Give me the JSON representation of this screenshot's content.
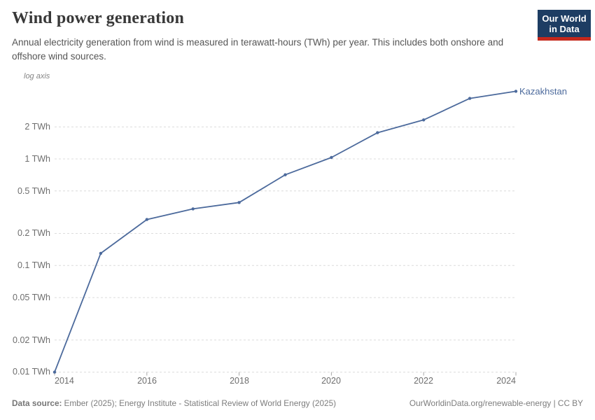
{
  "header": {
    "title": "Wind power generation",
    "subtitle": "Annual electricity generation from wind is measured in terawatt-hours (TWh) per year. This includes both onshore and offshore wind sources.",
    "logo": {
      "line1": "Our World",
      "line2": "in Data"
    }
  },
  "chart_data": {
    "type": "line",
    "title": "Wind power generation",
    "axis_note": "log axis",
    "y_scale": "log",
    "grid": true,
    "x": [
      2014,
      2015,
      2016,
      2017,
      2018,
      2019,
      2020,
      2021,
      2022,
      2023,
      2024
    ],
    "series": [
      {
        "name": "Kazakhstan",
        "color": "#4c6a9c",
        "values": [
          0.01,
          0.13,
          0.27,
          0.34,
          0.39,
          0.71,
          1.03,
          1.76,
          2.32,
          3.69,
          4.31
        ]
      }
    ],
    "xlim": [
      2014,
      2024
    ],
    "ylim": [
      0.01,
      5
    ],
    "ylabel": "TWh",
    "y_ticks": [
      {
        "value": 2,
        "label": "2 TWh"
      },
      {
        "value": 1,
        "label": "1 TWh"
      },
      {
        "value": 0.5,
        "label": "0.5 TWh"
      },
      {
        "value": 0.2,
        "label": "0.2 TWh"
      },
      {
        "value": 0.1,
        "label": "0.1 TWh"
      },
      {
        "value": 0.05,
        "label": "0.05 TWh"
      },
      {
        "value": 0.02,
        "label": "0.02 TWh"
      },
      {
        "value": 0.01,
        "label": "0.01 TWh"
      }
    ],
    "x_ticks": [
      {
        "value": 2014,
        "label": "2014"
      },
      {
        "value": 2016,
        "label": "2016"
      },
      {
        "value": 2018,
        "label": "2018"
      },
      {
        "value": 2020,
        "label": "2020"
      },
      {
        "value": 2022,
        "label": "2022"
      },
      {
        "value": 2024,
        "label": "2024"
      }
    ],
    "legend_position": "end-of-line-label"
  },
  "footer": {
    "datasource_label": "Data source:",
    "datasource_text": "Ember (2025); Energy Institute - Statistical Review of World Energy (2025)",
    "link_text": "OurWorldinData.org/renewable-energy | CC BY"
  },
  "colors": {
    "accent": "#4c6a9c",
    "logo_bg": "#1d3d63",
    "logo_stripe": "#c5281c",
    "gridline": "#dcdcdc",
    "axis_text": "#6e6e6e"
  }
}
